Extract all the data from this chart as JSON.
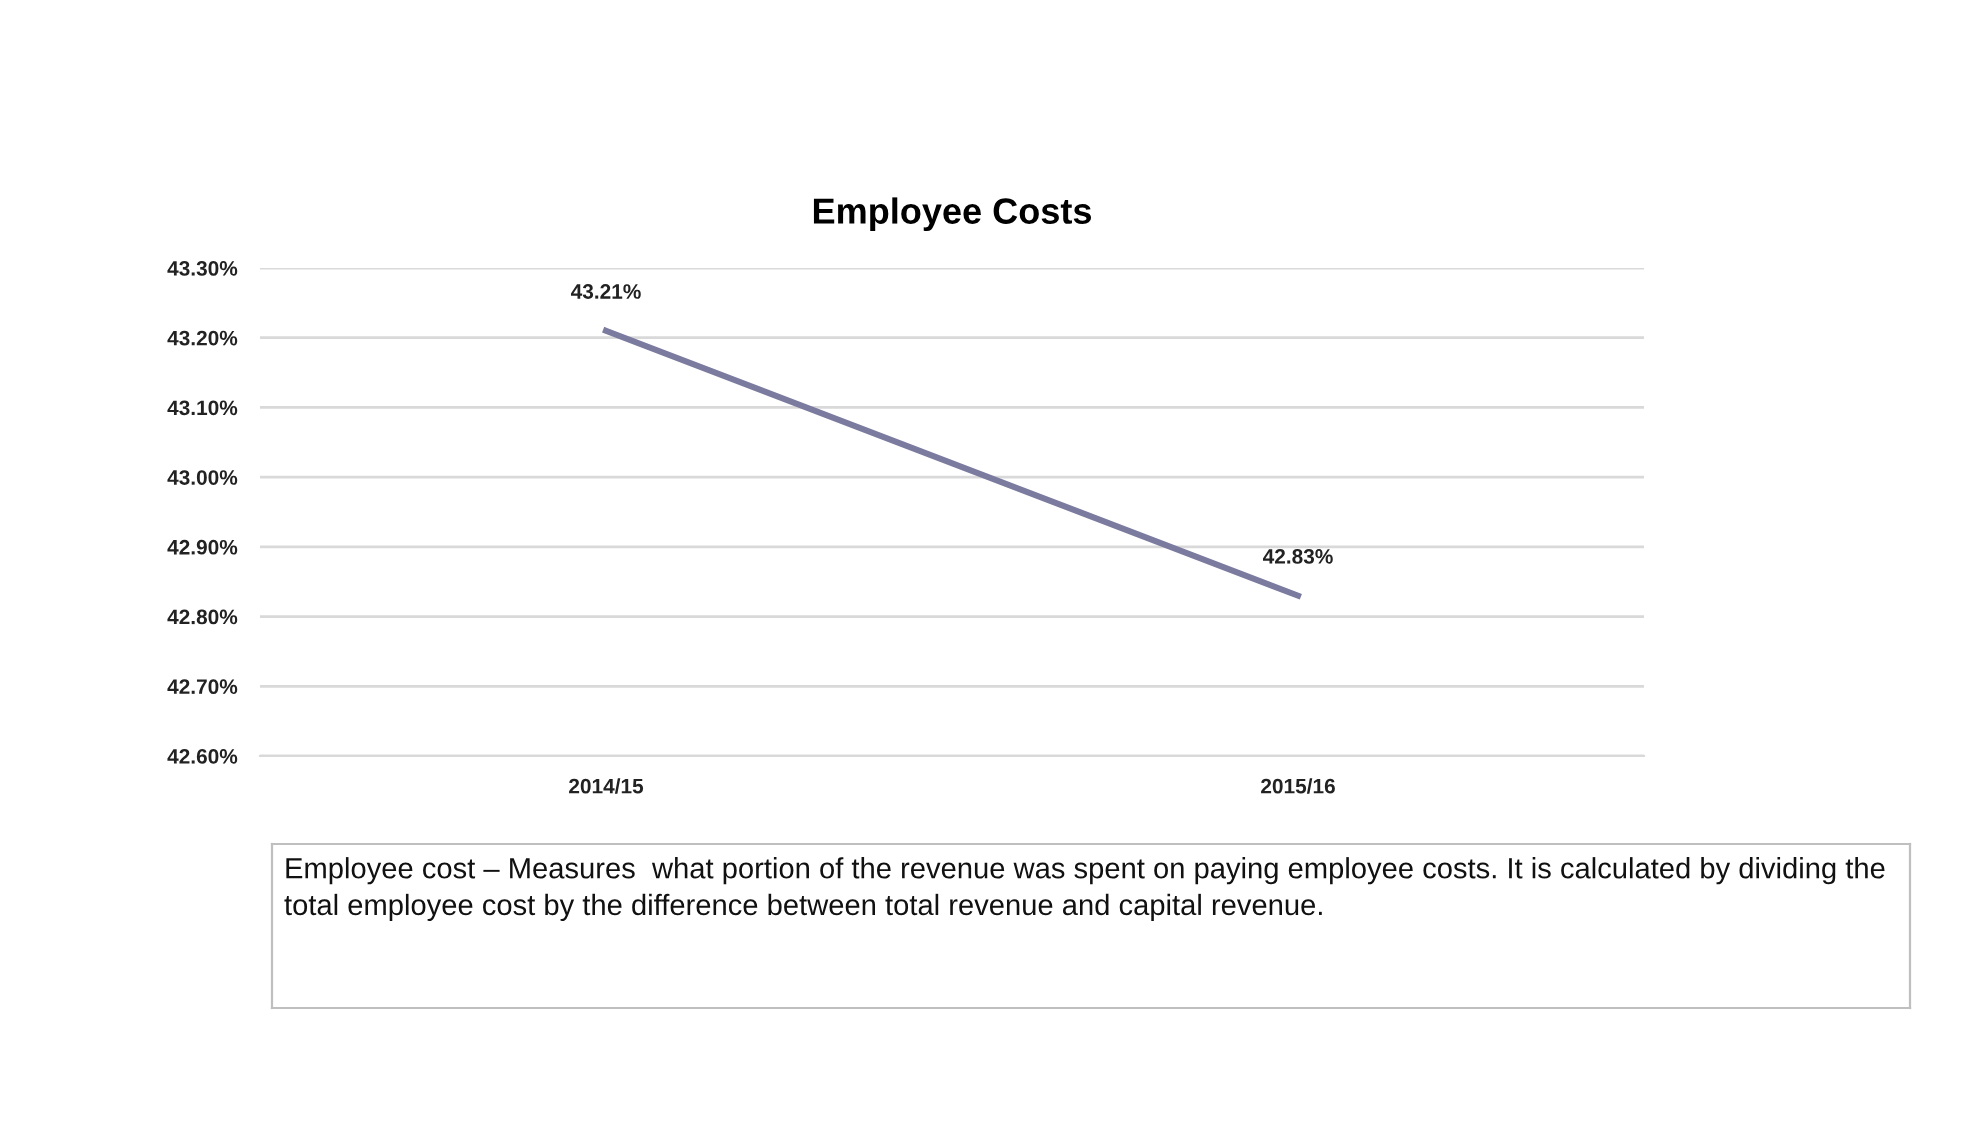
{
  "chart_data": {
    "type": "line",
    "title": "Employee Costs",
    "categories": [
      "2014/15",
      "2015/16"
    ],
    "series": [
      {
        "color": "#7b7a9f",
        "values": [
          43.21,
          42.83
        ],
        "value_labels": [
          "43.21%",
          "42.83%"
        ]
      }
    ],
    "ylim": [
      42.6,
      43.3
    ],
    "yticks": [
      {
        "value": 42.6,
        "label": "42.60%"
      },
      {
        "value": 42.7,
        "label": "42.70%"
      },
      {
        "value": 42.8,
        "label": "42.80%"
      },
      {
        "value": 42.9,
        "label": "42.90%"
      },
      {
        "value": 43.0,
        "label": "43.00%"
      },
      {
        "value": 43.1,
        "label": "43.10%"
      },
      {
        "value": 43.2,
        "label": "43.20%"
      },
      {
        "value": 43.3,
        "label": "43.30%"
      }
    ],
    "grid": "y",
    "legend": false,
    "marker": "none",
    "line_style": "solid",
    "annotations": [
      "Employee cost – Measures  what portion of the revenue was spent on paying employee costs. It is calculated by dividing the total employee cost by the difference between total revenue and capital revenue."
    ]
  }
}
